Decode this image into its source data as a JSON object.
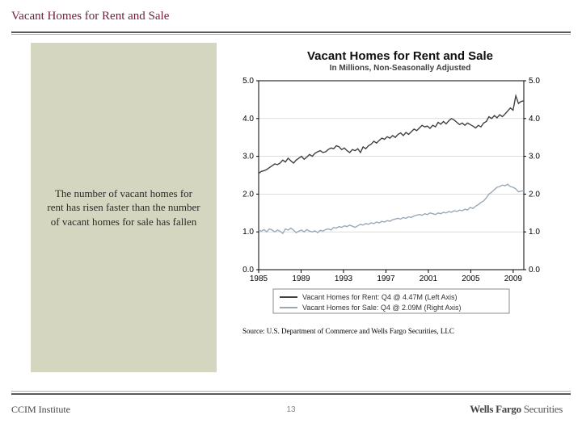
{
  "page": {
    "title": "Vacant Homes for Rent and Sale",
    "page_number": "13",
    "footer_left": "CCIM Institute",
    "footer_brand_a": "Wells Fargo",
    "footer_brand_b": " Securities",
    "source": "Source: U.S. Department of Commerce and Wells Fargo Securities, LLC"
  },
  "sidebar": {
    "text": "The number of vacant homes for rent has risen faster than the number of vacant homes for sale has fallen"
  },
  "chart": {
    "title": "Vacant Homes for Rent and Sale",
    "subtitle": "In Millions, Non-Seasonally Adjusted",
    "type": "line",
    "xlim": [
      1985,
      2010
    ],
    "ylim_left": [
      0.0,
      5.0
    ],
    "ylim_right": [
      0.0,
      5.0
    ],
    "xticks": [
      1985,
      1989,
      1993,
      1997,
      2001,
      2005,
      2009
    ],
    "yticks": [
      0.0,
      1.0,
      2.0,
      3.0,
      4.0,
      5.0
    ],
    "grid_color": "#c9c9c9",
    "axis_color": "#000000",
    "background": "#ffffff",
    "tick_fontsize": 10,
    "line_width": 1.4,
    "series": [
      {
        "name": "Vacant Homes for Rent: Q4 @ 4.47M (Left Axis)",
        "color": "#404040",
        "y": [
          2.55,
          2.6,
          2.62,
          2.65,
          2.7,
          2.75,
          2.8,
          2.78,
          2.82,
          2.9,
          2.85,
          2.95,
          2.88,
          2.82,
          2.9,
          2.95,
          3.0,
          2.92,
          2.98,
          3.05,
          3.0,
          3.08,
          3.12,
          3.15,
          3.1,
          3.12,
          3.18,
          3.22,
          3.2,
          3.28,
          3.25,
          3.18,
          3.22,
          3.15,
          3.1,
          3.18,
          3.15,
          3.2,
          3.1,
          3.25,
          3.2,
          3.28,
          3.32,
          3.4,
          3.35,
          3.42,
          3.48,
          3.45,
          3.52,
          3.48,
          3.55,
          3.5,
          3.58,
          3.62,
          3.55,
          3.63,
          3.58,
          3.65,
          3.72,
          3.68,
          3.75,
          3.82,
          3.78,
          3.8,
          3.74,
          3.82,
          3.78,
          3.9,
          3.85,
          3.92,
          3.86,
          3.94,
          4.0,
          3.96,
          3.9,
          3.84,
          3.88,
          3.82,
          3.88,
          3.84,
          3.8,
          3.75,
          3.82,
          3.78,
          3.88,
          3.92,
          4.05,
          4.0,
          4.08,
          4.02,
          4.1,
          4.05,
          4.12,
          4.2,
          4.28,
          4.22,
          4.6,
          4.4,
          4.45,
          4.47
        ]
      },
      {
        "name": "Vacant Homes for Sale: Q4 @ 2.09M (Right Axis)",
        "color": "#9aa9b8",
        "y": [
          1.05,
          1.02,
          1.06,
          1.0,
          1.08,
          1.05,
          1.0,
          1.05,
          1.02,
          0.96,
          1.08,
          1.05,
          1.1,
          1.05,
          0.98,
          1.02,
          1.05,
          1.0,
          1.06,
          1.02,
          1.0,
          1.03,
          0.98,
          1.04,
          1.02,
          1.06,
          1.08,
          1.05,
          1.12,
          1.1,
          1.14,
          1.12,
          1.16,
          1.14,
          1.18,
          1.15,
          1.12,
          1.16,
          1.2,
          1.18,
          1.22,
          1.2,
          1.24,
          1.22,
          1.26,
          1.24,
          1.28,
          1.26,
          1.3,
          1.28,
          1.32,
          1.34,
          1.36,
          1.34,
          1.38,
          1.36,
          1.4,
          1.38,
          1.42,
          1.44,
          1.46,
          1.44,
          1.48,
          1.46,
          1.5,
          1.48,
          1.46,
          1.5,
          1.48,
          1.52,
          1.5,
          1.54,
          1.52,
          1.56,
          1.54,
          1.58,
          1.56,
          1.6,
          1.58,
          1.65,
          1.62,
          1.68,
          1.72,
          1.78,
          1.82,
          1.9,
          2.0,
          2.05,
          2.12,
          2.18,
          2.2,
          2.24,
          2.22,
          2.26,
          2.2,
          2.18,
          2.14,
          2.06,
          2.08,
          2.09
        ]
      }
    ],
    "legend": {
      "border_color": "#707070",
      "bg": "#ffffff",
      "swatch_w": 22
    }
  }
}
